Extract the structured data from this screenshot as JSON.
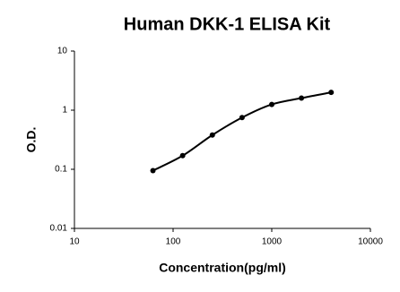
{
  "chart_data": {
    "type": "scatter",
    "title": "Human DKK-1 ELISA Kit",
    "x_label": "Concentration(pg/ml)",
    "y_label": "O.D.",
    "x": [
      62.5,
      125,
      250,
      500,
      1000,
      2000,
      4000
    ],
    "values": [
      0.095,
      0.17,
      0.38,
      0.75,
      1.25,
      1.6,
      2.0
    ],
    "color": "#000000",
    "line": "smooth",
    "log_x": true,
    "log_y": true,
    "xlim": [
      10,
      10000
    ],
    "xticks": [
      10,
      100,
      1000,
      10000
    ],
    "ylim": [
      0.01,
      10
    ],
    "yticks": [
      0.01,
      0.1,
      1,
      10
    ],
    "grid": false
  }
}
